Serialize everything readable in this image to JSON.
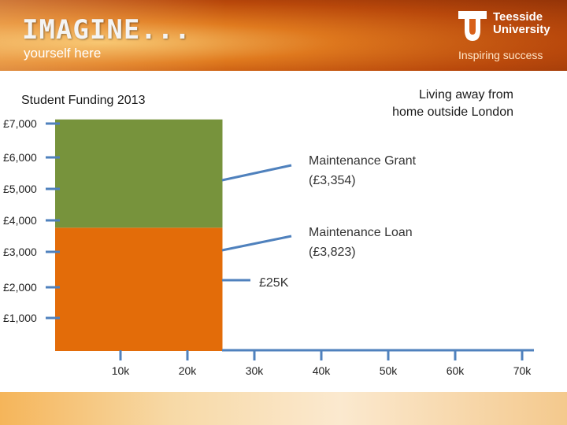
{
  "header": {
    "brand_main": "IMAGINE...",
    "brand_sub": "yourself here",
    "university_line1": "Teesside",
    "university_line2": "University",
    "tagline": "Inspiring success"
  },
  "colors": {
    "grant": "#77933c",
    "loan": "#e36c09",
    "axis": "#4f81bd"
  },
  "chart_data": {
    "type": "area",
    "title": "Student Funding 2013",
    "subtitle_lines": [
      "Living away from",
      "home outside London"
    ],
    "x_ticks": [
      "10k",
      "20k",
      "30k",
      "40k",
      "50k",
      "60k",
      "70k"
    ],
    "x_range": [
      0,
      70000
    ],
    "y_ticks": [
      "£7,000",
      "£6,000",
      "£5,000",
      "£4,000",
      "£3,000",
      "£2,000",
      "£1,000"
    ],
    "y_range": [
      0,
      7000
    ],
    "series": [
      {
        "name": "Maintenance Loan",
        "label": "Maintenance Loan (£3,823)",
        "value": 3823,
        "x_end": 25000
      },
      {
        "name": "Maintenance Grant",
        "label": "Maintenance Grant (£3,354)",
        "value": 3354,
        "x_end": 25000
      }
    ],
    "annotations": {
      "grant_line1": "Maintenance Grant",
      "grant_line2": "(£3,354)",
      "loan_line1": "Maintenance Loan",
      "loan_line2": "(£3,823)",
      "threshold": "£25K"
    }
  }
}
